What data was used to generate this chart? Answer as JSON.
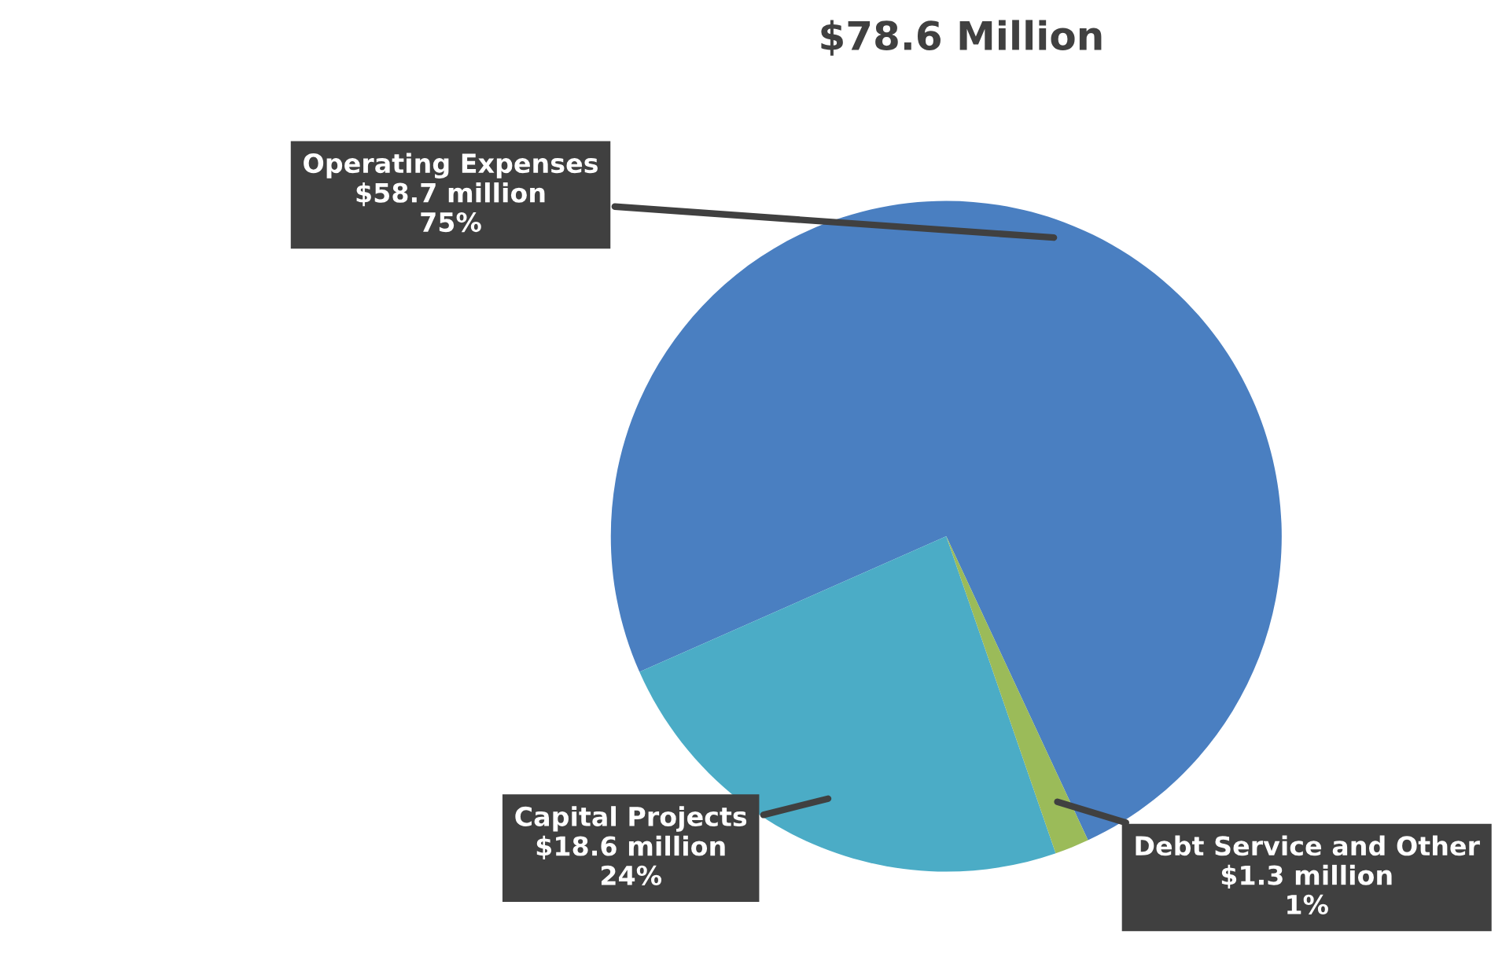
{
  "chart_data": {
    "type": "pie",
    "title": "$78.6 Million",
    "categories": [
      "Operating Expenses",
      "Capital Projects",
      "Debt Service and Other"
    ],
    "values": [
      58.7,
      18.6,
      1.3
    ],
    "colors": [
      "#4a7fc1",
      "#4bacc6",
      "#9bbb59"
    ],
    "value_labels": [
      "$58.7 million",
      "$18.6 million",
      "$1.3 million"
    ],
    "annotations": [
      "75%",
      "24%",
      "1%"
    ],
    "legend": false
  }
}
